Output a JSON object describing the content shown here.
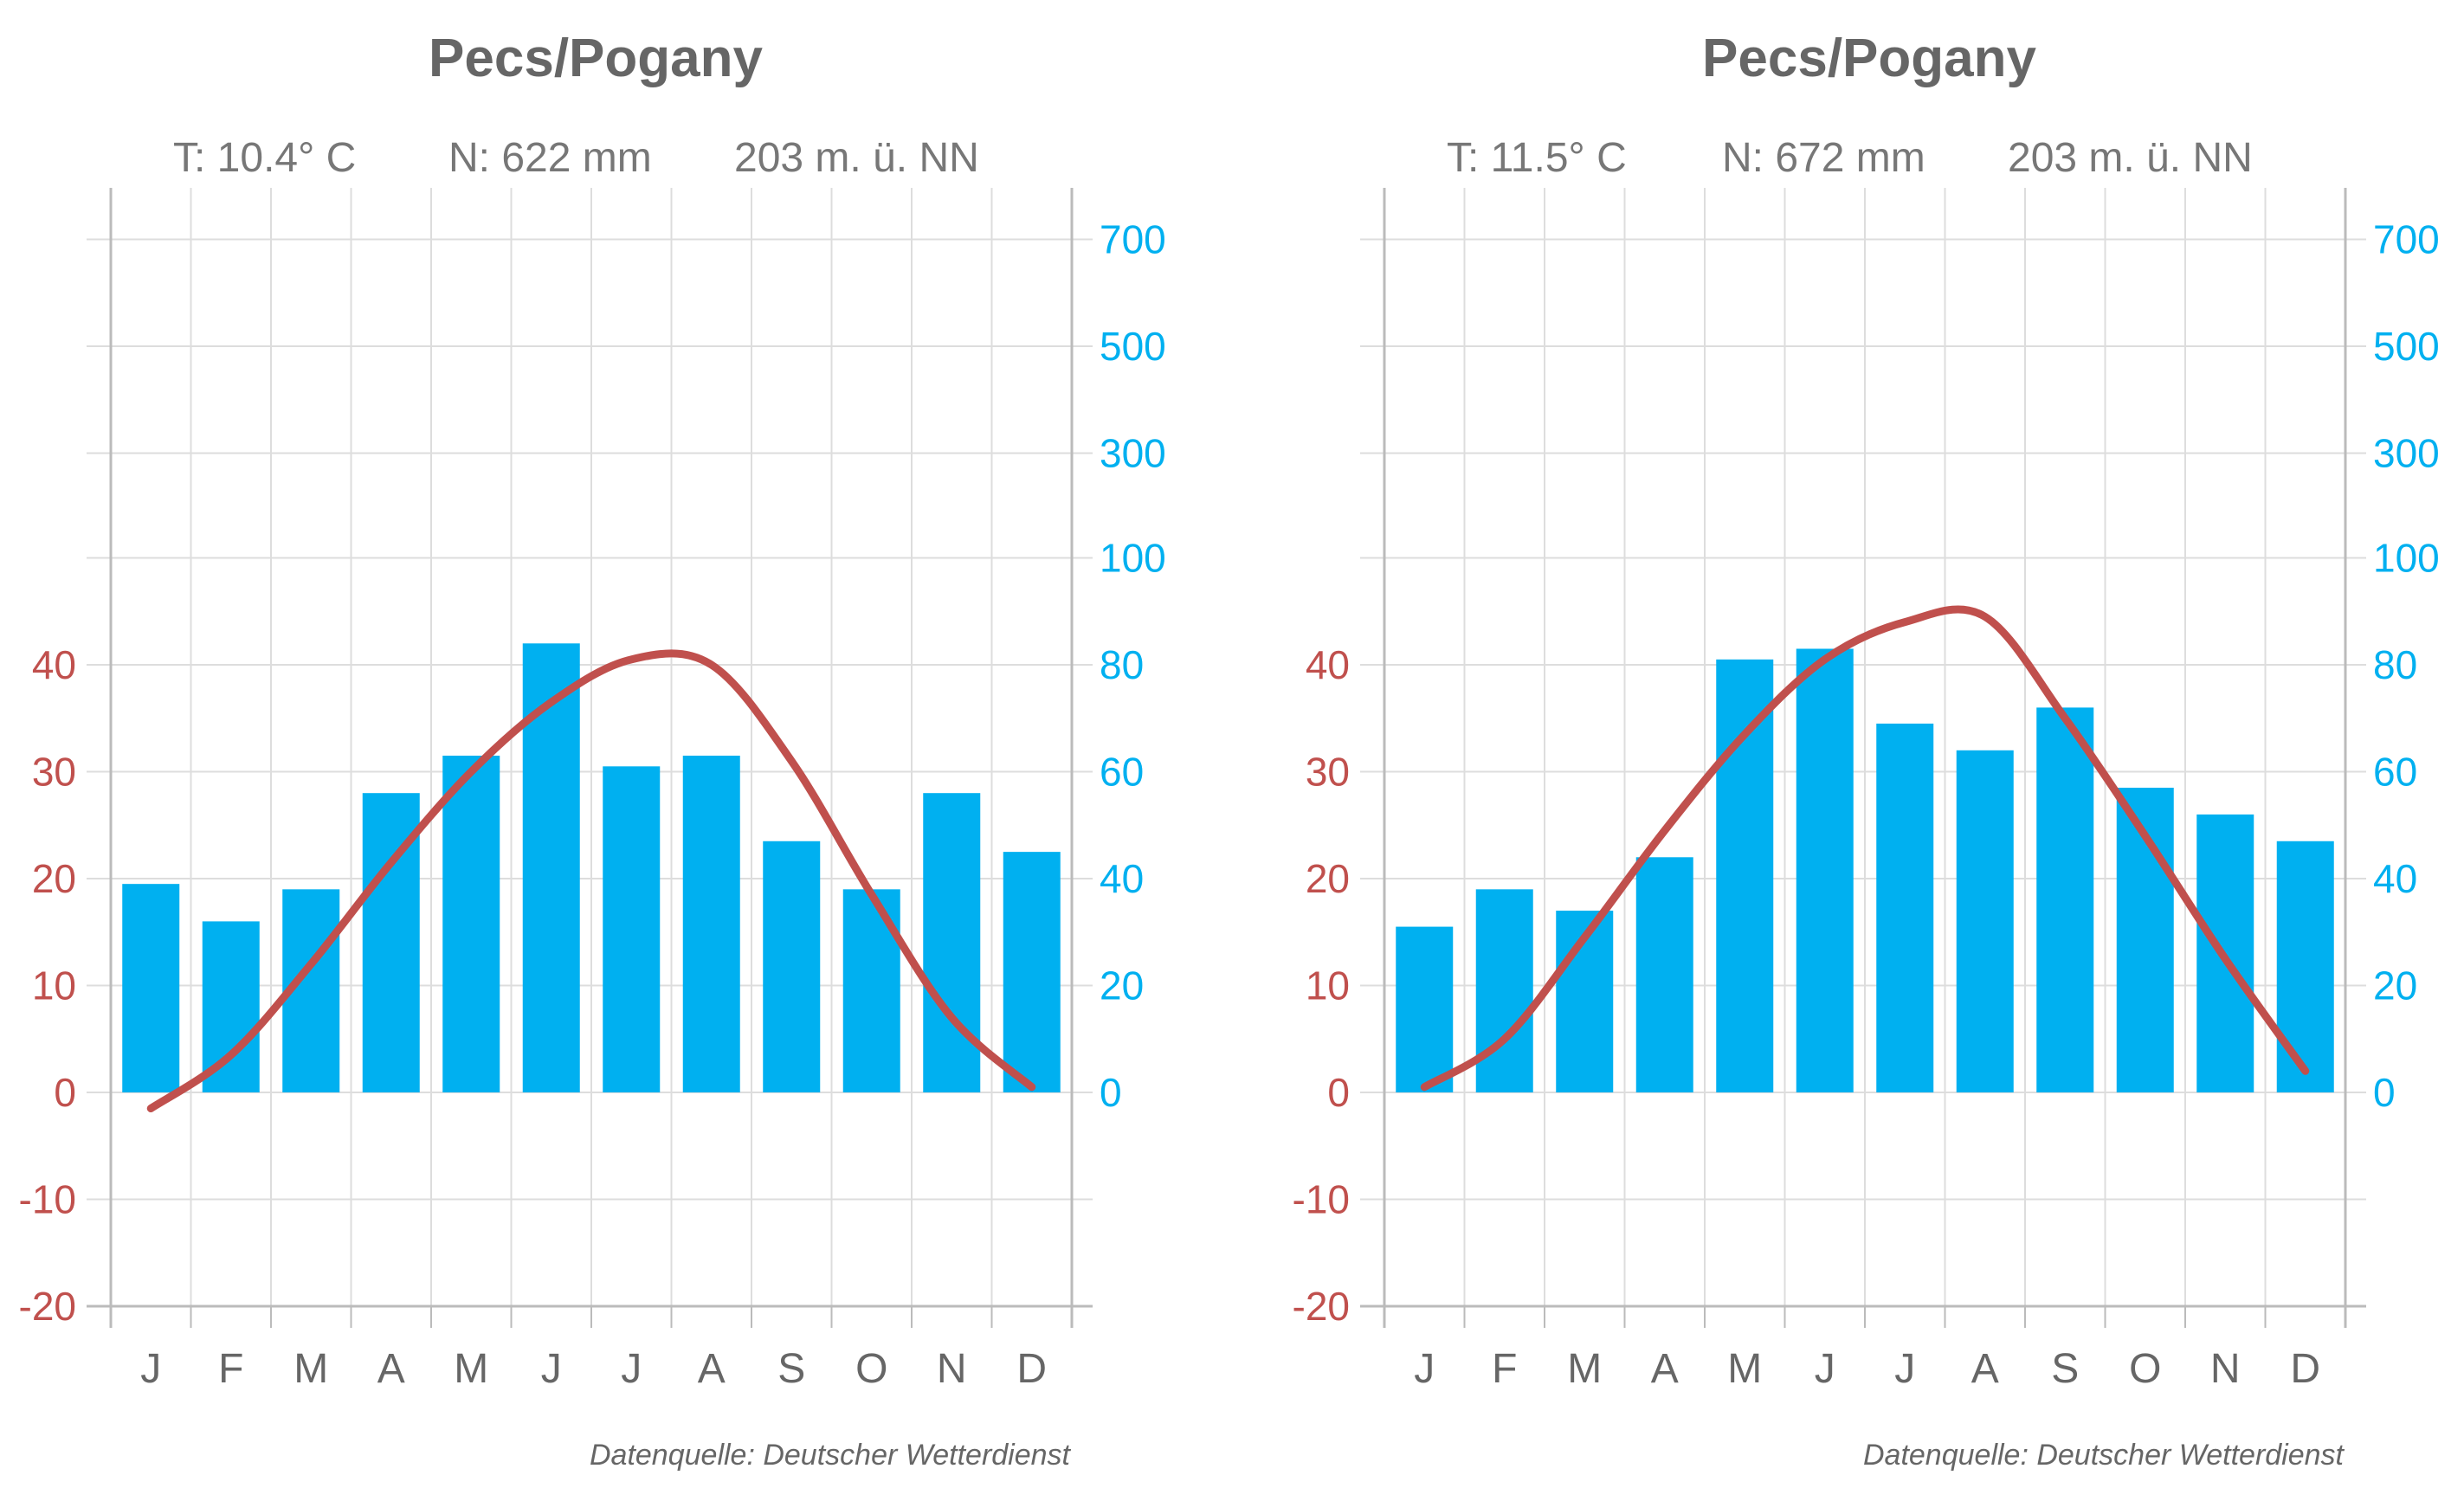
{
  "chart_data": [
    {
      "type": "bar",
      "title": "Pecs/Pogany",
      "subtitle": {
        "temperature": "T: 10.4° C",
        "precipitation": "N: 622 mm",
        "elevation": "203 m. ü. NN"
      },
      "categories": [
        "J",
        "F",
        "M",
        "A",
        "M",
        "J",
        "J",
        "A",
        "S",
        "O",
        "N",
        "D"
      ],
      "series": [
        {
          "type": "bar",
          "axis": "right",
          "values": [
            39,
            32,
            38,
            56,
            63,
            84,
            61,
            63,
            47,
            38,
            56,
            45
          ]
        },
        {
          "type": "line",
          "axis": "left",
          "values": [
            -1.5,
            3.5,
            12,
            21.5,
            30,
            36.5,
            40.5,
            40,
            31,
            18.5,
            7,
            0.5
          ]
        }
      ],
      "left_axis": {
        "ticks": [
          "-20",
          "-10",
          "0",
          "10",
          "20",
          "30",
          "40"
        ],
        "range": [
          -20,
          40
        ]
      },
      "right_axis": {
        "ticks": [
          "0",
          "20",
          "40",
          "60",
          "80",
          "100",
          "300",
          "500",
          "700"
        ],
        "lower_range": [
          0,
          100
        ],
        "upper_range": [
          100,
          700
        ]
      },
      "grid": true,
      "source": "Datenquelle: Deutscher Wetterdienst",
      "colors": {
        "bars": "#00b0f0",
        "line": "#c0504d",
        "title": "#666666",
        "subtitle": "#777777",
        "left_axis": "#c0504d",
        "right_axis": "#00b0f0",
        "grid": "#dddddd",
        "axis": "#bbbbbb"
      }
    },
    {
      "type": "bar",
      "title": "Pecs/Pogany",
      "subtitle": {
        "temperature": "T: 11.5° C",
        "precipitation": "N: 672 mm",
        "elevation": "203 m. ü. NN"
      },
      "categories": [
        "J",
        "F",
        "M",
        "A",
        "M",
        "J",
        "J",
        "A",
        "S",
        "O",
        "N",
        "D"
      ],
      "series": [
        {
          "type": "bar",
          "axis": "right",
          "values": [
            31,
            38,
            34,
            44,
            81,
            83,
            69,
            64,
            72,
            57,
            52,
            47
          ]
        },
        {
          "type": "line",
          "axis": "left",
          "values": [
            0.5,
            5,
            14.5,
            24.5,
            33.5,
            40.5,
            44,
            44.5,
            35,
            24,
            12.5,
            2
          ]
        }
      ],
      "left_axis": {
        "ticks": [
          "-20",
          "-10",
          "0",
          "10",
          "20",
          "30",
          "40"
        ],
        "range": [
          -20,
          40
        ]
      },
      "right_axis": {
        "ticks": [
          "0",
          "20",
          "40",
          "60",
          "80",
          "100",
          "300",
          "500",
          "700"
        ],
        "lower_range": [
          0,
          100
        ],
        "upper_range": [
          100,
          700
        ]
      },
      "grid": true,
      "source": "Datenquelle: Deutscher Wetterdienst",
      "colors": {
        "bars": "#00b0f0",
        "line": "#c0504d",
        "title": "#666666",
        "subtitle": "#777777",
        "left_axis": "#c0504d",
        "right_axis": "#00b0f0",
        "grid": "#dddddd",
        "axis": "#bbbbbb"
      }
    }
  ]
}
